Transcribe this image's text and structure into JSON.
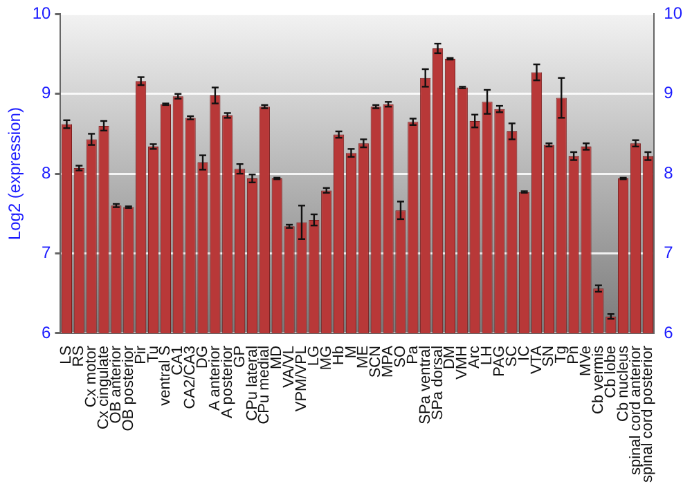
{
  "chart_data": {
    "type": "bar",
    "ylabel": "Log2 (expression)",
    "categories": [
      "LS",
      "RS",
      "Cx motor",
      "Cx cingulate",
      "OB anterior",
      "OB posterior",
      "Pir",
      "Tu",
      "ventral S",
      "CA1",
      "CA2/CA3",
      "DG",
      "A anterior",
      "A posterior",
      "GP",
      "CPu lateral",
      "CPu medial",
      "MD",
      "VA/VL",
      "VPM/VPL",
      "LG",
      "MG",
      "Hb",
      "M",
      "ME",
      "SCN",
      "MPA",
      "SO",
      "Pa",
      "SPa ventral",
      "SPa dorsal",
      "DM",
      "VMH",
      "Arc",
      "LH",
      "PAG",
      "SC",
      "IC",
      "VTA",
      "SN",
      "Tg",
      "Pn",
      "MVe",
      "Cb vermis",
      "Cb lobe",
      "Cb nucleus",
      "spinal cord anterior",
      "spinal cord posterior"
    ],
    "values": [
      8.62,
      8.07,
      8.43,
      8.6,
      7.6,
      7.58,
      9.16,
      8.34,
      8.87,
      8.97,
      8.7,
      8.14,
      8.98,
      8.73,
      8.06,
      7.94,
      8.84,
      7.94,
      7.34,
      7.39,
      7.42,
      7.79,
      8.49,
      8.26,
      8.38,
      8.84,
      8.87,
      7.54,
      8.65,
      9.2,
      9.57,
      9.44,
      9.08,
      8.66,
      8.9,
      8.81,
      8.53,
      7.77,
      9.27,
      8.36,
      8.95,
      8.22,
      8.34,
      6.56,
      6.21,
      7.94,
      8.38,
      8.22
    ],
    "errors": [
      0.05,
      0.03,
      0.07,
      0.06,
      0.02,
      0.01,
      0.05,
      0.03,
      0.01,
      0.03,
      0.02,
      0.09,
      0.1,
      0.03,
      0.06,
      0.05,
      0.02,
      0.01,
      0.02,
      0.21,
      0.07,
      0.03,
      0.04,
      0.05,
      0.05,
      0.02,
      0.03,
      0.11,
      0.04,
      0.11,
      0.06,
      0.01,
      0.01,
      0.08,
      0.15,
      0.04,
      0.1,
      0.01,
      0.1,
      0.02,
      0.25,
      0.05,
      0.04,
      0.04,
      0.03,
      0.01,
      0.04,
      0.05
    ],
    "color": "#b83838",
    "ylim": [
      6,
      10
    ],
    "yticks": [
      6,
      7,
      8,
      9,
      10
    ],
    "y2lim": [
      6,
      10
    ],
    "y2ticks": [
      6,
      7,
      8,
      9,
      10
    ],
    "grid": "y",
    "legend": false
  }
}
